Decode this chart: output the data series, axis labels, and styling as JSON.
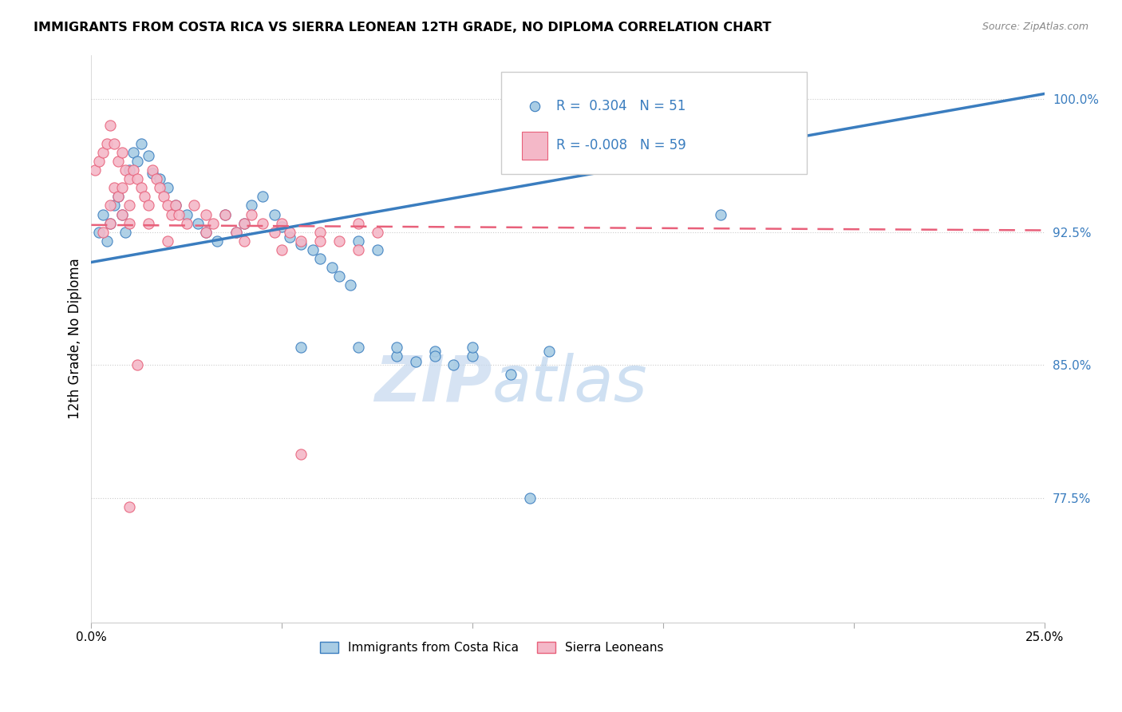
{
  "title": "IMMIGRANTS FROM COSTA RICA VS SIERRA LEONEAN 12TH GRADE, NO DIPLOMA CORRELATION CHART",
  "source": "Source: ZipAtlas.com",
  "ylabel_axis": "12th Grade, No Diploma",
  "watermark_zip": "ZIP",
  "watermark_atlas": "atlas",
  "legend_label1": "Immigrants from Costa Rica",
  "legend_label2": "Sierra Leoneans",
  "r1": "0.304",
  "n1": "51",
  "r2": "-0.008",
  "n2": "59",
  "ytick_labels": [
    "100.0%",
    "92.5%",
    "85.0%",
    "77.5%"
  ],
  "ytick_values": [
    1.0,
    0.925,
    0.85,
    0.775
  ],
  "xlim": [
    0.0,
    0.25
  ],
  "ylim": [
    0.705,
    1.025
  ],
  "color_blue": "#a8cce4",
  "color_pink": "#f4b8c8",
  "color_blue_line": "#3a7dbf",
  "color_pink_line": "#e8607a",
  "blue_line_x0": 0.0,
  "blue_line_y0": 0.908,
  "blue_line_x1": 0.25,
  "blue_line_y1": 1.003,
  "pink_line_x0": 0.0,
  "pink_line_y0": 0.929,
  "pink_line_x1": 0.25,
  "pink_line_y1": 0.926,
  "blue_x": [
    0.002,
    0.003,
    0.004,
    0.005,
    0.006,
    0.007,
    0.008,
    0.009,
    0.01,
    0.011,
    0.012,
    0.013,
    0.015,
    0.016,
    0.018,
    0.02,
    0.022,
    0.025,
    0.028,
    0.03,
    0.033,
    0.035,
    0.038,
    0.04,
    0.042,
    0.045,
    0.048,
    0.05,
    0.052,
    0.055,
    0.058,
    0.06,
    0.063,
    0.065,
    0.068,
    0.07,
    0.075,
    0.08,
    0.085,
    0.09,
    0.095,
    0.1,
    0.11,
    0.12,
    0.055,
    0.07,
    0.08,
    0.09,
    0.1,
    0.165,
    0.115
  ],
  "blue_y": [
    0.925,
    0.935,
    0.92,
    0.93,
    0.94,
    0.945,
    0.935,
    0.925,
    0.96,
    0.97,
    0.965,
    0.975,
    0.968,
    0.958,
    0.955,
    0.95,
    0.94,
    0.935,
    0.93,
    0.925,
    0.92,
    0.935,
    0.925,
    0.93,
    0.94,
    0.945,
    0.935,
    0.928,
    0.922,
    0.918,
    0.915,
    0.91,
    0.905,
    0.9,
    0.895,
    0.92,
    0.915,
    0.855,
    0.852,
    0.858,
    0.85,
    0.855,
    0.845,
    0.858,
    0.86,
    0.86,
    0.86,
    0.855,
    0.86,
    0.935,
    0.775
  ],
  "pink_x": [
    0.001,
    0.002,
    0.003,
    0.004,
    0.005,
    0.005,
    0.006,
    0.006,
    0.007,
    0.007,
    0.008,
    0.008,
    0.009,
    0.01,
    0.01,
    0.011,
    0.012,
    0.013,
    0.014,
    0.015,
    0.016,
    0.017,
    0.018,
    0.019,
    0.02,
    0.021,
    0.022,
    0.023,
    0.025,
    0.027,
    0.03,
    0.032,
    0.035,
    0.038,
    0.04,
    0.042,
    0.045,
    0.048,
    0.05,
    0.052,
    0.055,
    0.06,
    0.065,
    0.07,
    0.075,
    0.02,
    0.03,
    0.04,
    0.05,
    0.06,
    0.07,
    0.003,
    0.005,
    0.008,
    0.01,
    0.015,
    0.055,
    0.012,
    0.01
  ],
  "pink_y": [
    0.96,
    0.965,
    0.97,
    0.975,
    0.985,
    0.94,
    0.975,
    0.95,
    0.965,
    0.945,
    0.97,
    0.95,
    0.96,
    0.955,
    0.94,
    0.96,
    0.955,
    0.95,
    0.945,
    0.94,
    0.96,
    0.955,
    0.95,
    0.945,
    0.94,
    0.935,
    0.94,
    0.935,
    0.93,
    0.94,
    0.935,
    0.93,
    0.935,
    0.925,
    0.93,
    0.935,
    0.93,
    0.925,
    0.93,
    0.925,
    0.92,
    0.925,
    0.92,
    0.93,
    0.925,
    0.92,
    0.925,
    0.92,
    0.915,
    0.92,
    0.915,
    0.925,
    0.93,
    0.935,
    0.93,
    0.93,
    0.8,
    0.85,
    0.77
  ]
}
